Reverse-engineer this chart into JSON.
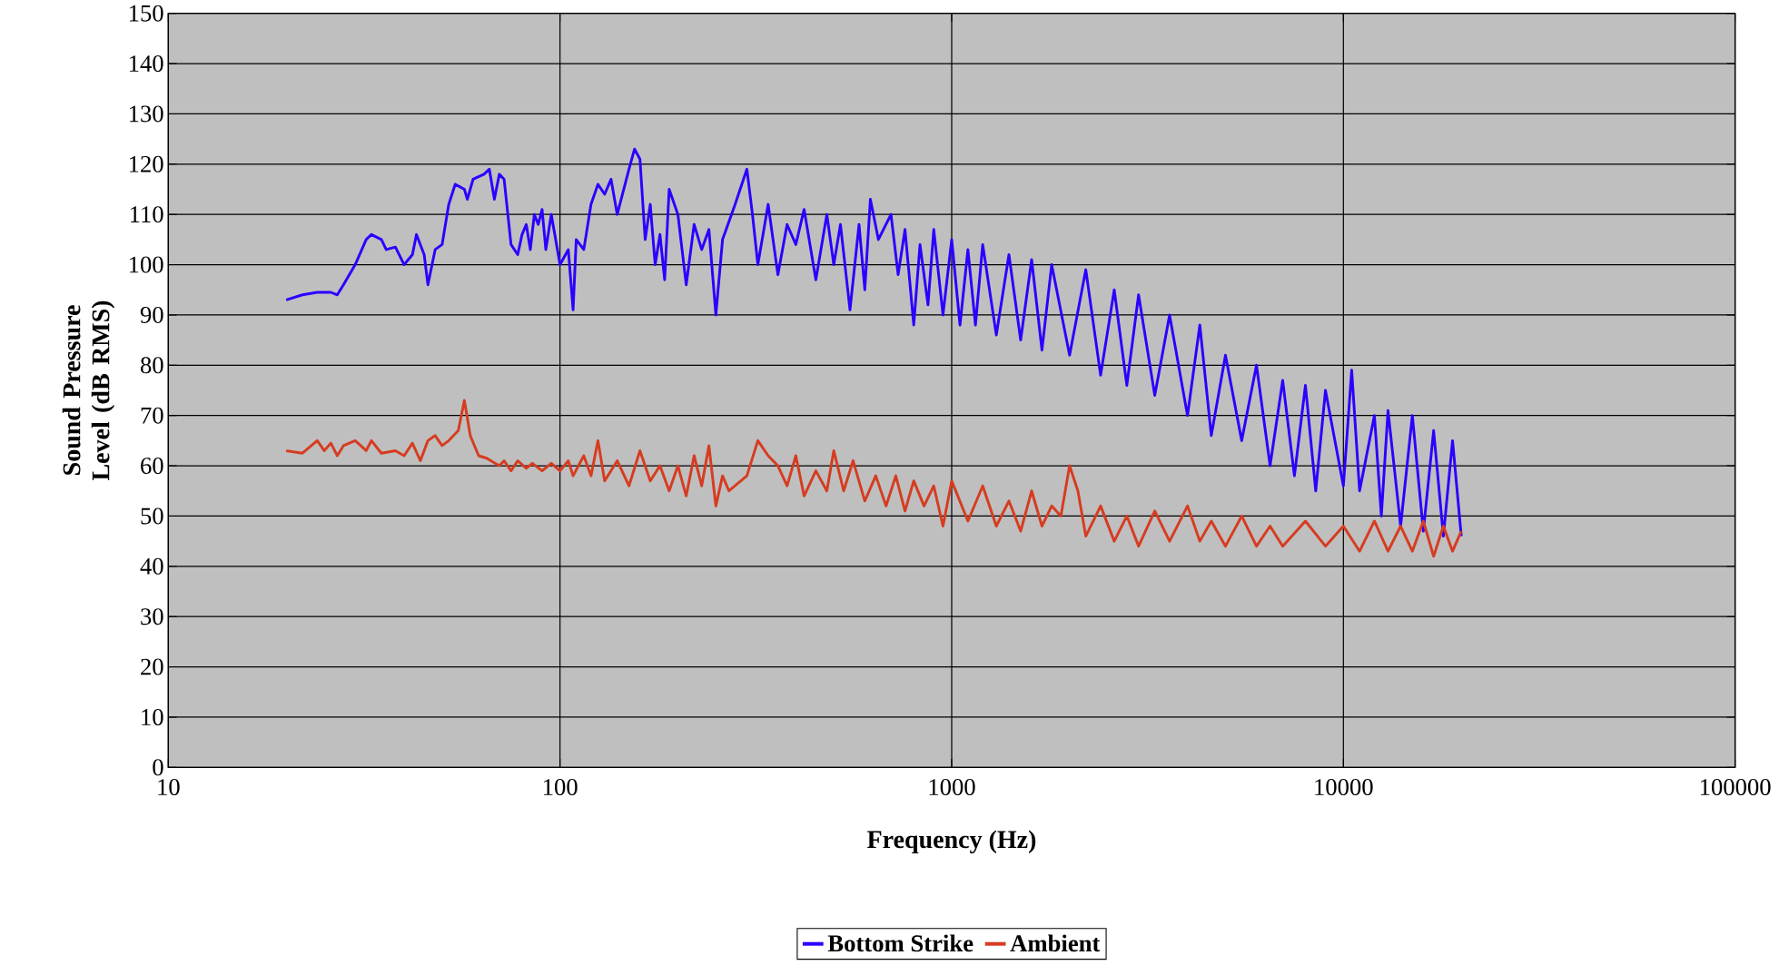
{
  "chart_data": {
    "type": "line",
    "xlabel": "Frequency (Hz)",
    "ylabel": "Sound Pressure Level (dB RMS)",
    "log": "x",
    "grid": true,
    "legend": "bottom",
    "line_style": "solid",
    "marker": "none",
    "xlim": [
      10,
      100000
    ],
    "xticks": [
      10,
      100,
      1000,
      10000,
      100000
    ],
    "ylim": [
      0,
      150
    ],
    "yticks": [
      0,
      10,
      20,
      30,
      40,
      50,
      60,
      70,
      80,
      90,
      100,
      110,
      120,
      130,
      140,
      150
    ],
    "series": [
      {
        "name": "Bottom Strike",
        "color": "#2a00ff",
        "x": [
          20,
          22,
          24,
          26,
          27,
          28,
          30,
          32,
          33,
          35,
          36,
          38,
          40,
          42,
          43,
          45,
          46,
          48,
          50,
          52,
          54,
          57,
          58,
          60,
          64,
          66,
          68,
          70,
          72,
          75,
          78,
          80,
          82,
          84,
          86,
          88,
          90,
          92,
          95,
          100,
          105,
          108,
          110,
          115,
          120,
          125,
          130,
          135,
          140,
          150,
          155,
          160,
          165,
          170,
          175,
          180,
          185,
          190,
          200,
          210,
          220,
          230,
          240,
          250,
          260,
          280,
          300,
          310,
          320,
          340,
          360,
          380,
          400,
          420,
          450,
          480,
          500,
          520,
          550,
          580,
          600,
          620,
          650,
          700,
          730,
          760,
          800,
          830,
          870,
          900,
          950,
          1000,
          1050,
          1100,
          1150,
          1200,
          1300,
          1400,
          1500,
          1600,
          1700,
          1800,
          2000,
          2200,
          2400,
          2600,
          2800,
          3000,
          3300,
          3600,
          4000,
          4300,
          4600,
          5000,
          5500,
          6000,
          6500,
          7000,
          7500,
          8000,
          8500,
          9000,
          10000,
          10500,
          11000,
          12000,
          12500,
          13000,
          14000,
          15000,
          16000,
          17000,
          18000,
          19000,
          20000
        ],
        "values": [
          93,
          94,
          94.5,
          94.5,
          94,
          96,
          100,
          105,
          106,
          105,
          103,
          103.5,
          100,
          102,
          106,
          102,
          96,
          103,
          104,
          112,
          116,
          115,
          113,
          117,
          118,
          119,
          113,
          118,
          117,
          104,
          102,
          106,
          108,
          103,
          110,
          108,
          111,
          103,
          110,
          100,
          103,
          91,
          105,
          103,
          112,
          116,
          114,
          117,
          110,
          119,
          123,
          121,
          105,
          112,
          100,
          106,
          97,
          115,
          110,
          96,
          108,
          103,
          107,
          90,
          105,
          112,
          119,
          110,
          100,
          112,
          98,
          108,
          104,
          111,
          97,
          110,
          100,
          108,
          91,
          108,
          95,
          113,
          105,
          110,
          98,
          107,
          88,
          104,
          92,
          107,
          90,
          105,
          88,
          103,
          88,
          104,
          86,
          102,
          85,
          101,
          83,
          100,
          82,
          99,
          78,
          95,
          76,
          94,
          74,
          90,
          70,
          88,
          66,
          82,
          65,
          80,
          60,
          77,
          58,
          76,
          55,
          75,
          56,
          79,
          55,
          70,
          50,
          71,
          48,
          70,
          47,
          67,
          46,
          65,
          46
        ]
      },
      {
        "name": "Ambient",
        "color": "#d63c20",
        "x": [
          20,
          22,
          24,
          25,
          26,
          27,
          28,
          30,
          32,
          33,
          35,
          38,
          40,
          42,
          44,
          46,
          48,
          50,
          52,
          55,
          57,
          59,
          62,
          65,
          70,
          72,
          75,
          78,
          82,
          85,
          90,
          95,
          100,
          105,
          108,
          115,
          120,
          125,
          130,
          140,
          150,
          160,
          170,
          180,
          190,
          200,
          210,
          220,
          230,
          240,
          250,
          260,
          270,
          300,
          320,
          340,
          360,
          380,
          400,
          420,
          450,
          480,
          500,
          530,
          560,
          600,
          640,
          680,
          720,
          760,
          800,
          850,
          900,
          950,
          1000,
          1100,
          1200,
          1300,
          1400,
          1500,
          1600,
          1700,
          1800,
          1900,
          2000,
          2100,
          2200,
          2400,
          2600,
          2800,
          3000,
          3300,
          3600,
          4000,
          4300,
          4600,
          5000,
          5500,
          6000,
          6500,
          7000,
          8000,
          9000,
          10000,
          11000,
          12000,
          13000,
          14000,
          15000,
          16000,
          17000,
          18000,
          19000,
          20000
        ],
        "values": [
          63,
          62.5,
          65,
          63,
          64.5,
          62,
          64,
          65,
          63,
          65,
          62.5,
          63,
          62,
          64.5,
          61,
          65,
          66,
          64,
          65,
          67,
          73,
          66,
          62,
          61.5,
          60,
          61,
          59,
          61,
          59.5,
          60.5,
          59,
          60.5,
          59,
          61,
          58,
          62,
          58,
          65,
          57,
          61,
          56,
          63,
          57,
          60,
          55,
          60,
          54,
          62,
          56,
          64,
          52,
          58,
          55,
          58,
          65,
          62,
          60,
          56,
          62,
          54,
          59,
          55,
          63,
          55,
          61,
          53,
          58,
          52,
          58,
          51,
          57,
          52,
          56,
          48,
          57,
          49,
          56,
          48,
          53,
          47,
          55,
          48,
          52,
          50,
          60,
          55,
          46,
          52,
          45,
          50,
          44,
          51,
          45,
          52,
          45,
          49,
          44,
          50,
          44,
          48,
          44,
          49,
          44,
          48,
          43,
          49,
          43,
          48,
          43,
          49,
          42,
          48,
          43,
          47
        ]
      }
    ]
  }
}
